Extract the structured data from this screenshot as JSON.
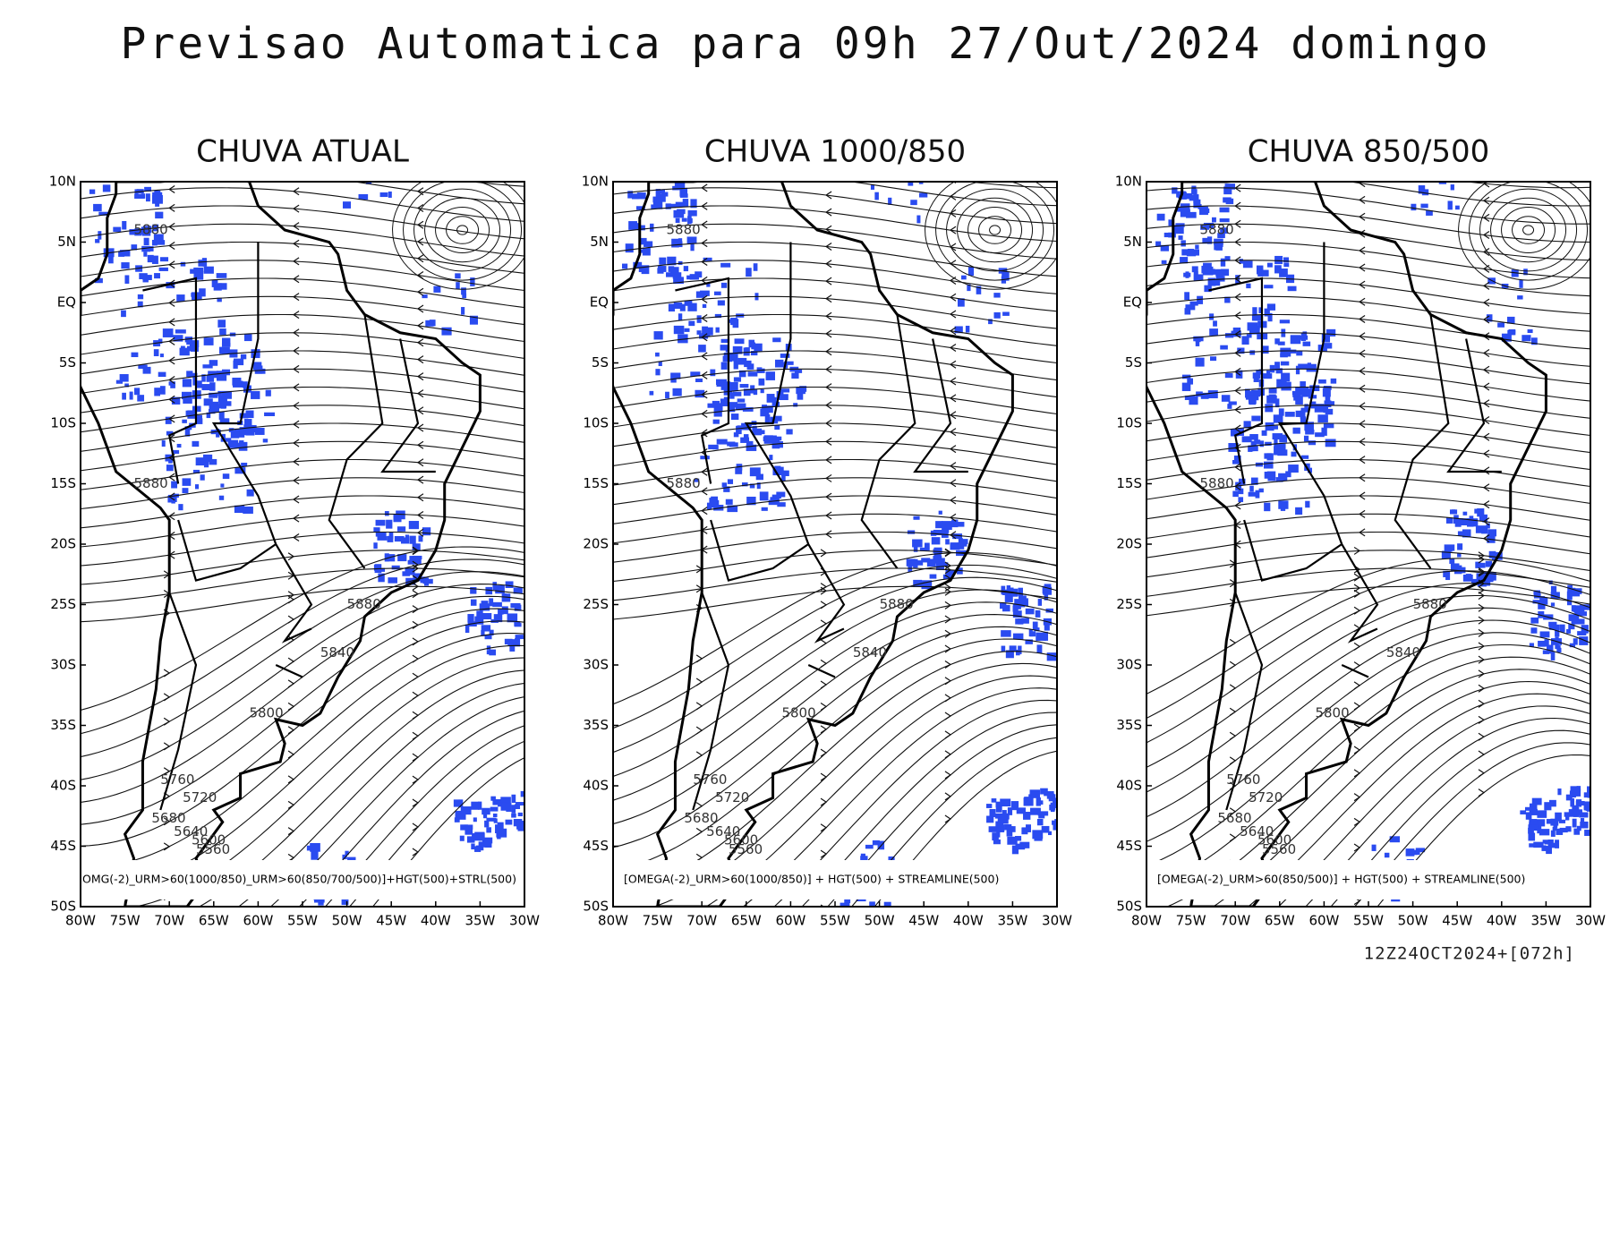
{
  "header": {
    "title": "Previsao Automatica para 09h 27/Out/2024 domingo"
  },
  "lat_labels": [
    "10N",
    "5N",
    "EQ",
    "5S",
    "10S",
    "15S",
    "20S",
    "25S",
    "30S",
    "35S",
    "40S",
    "45S",
    "50S"
  ],
  "lon_labels": [
    "80W",
    "75W",
    "70W",
    "65W",
    "60W",
    "55W",
    "50W",
    "45W",
    "40W",
    "35W",
    "30W"
  ],
  "panels": [
    {
      "title": "CHUVA ATUAL",
      "caption": "OMG(-2)_URM>60(1000/850)_URM>60(850/700/500)]+HGT(500)+STRL(500)",
      "contour_labels": [
        "5880",
        "5880",
        "5880",
        "5840",
        "5800",
        "5760",
        "5720",
        "5680",
        "5640",
        "5600",
        "5560"
      ]
    },
    {
      "title": "CHUVA 1000/850",
      "caption": "[OMEGA(-2)_URM>60(1000/850)] + HGT(500) + STREAMLINE(500)",
      "contour_labels": [
        "5880",
        "5880",
        "5880",
        "5840",
        "5800",
        "5760",
        "5720",
        "5680",
        "5640",
        "5600",
        "5560"
      ]
    },
    {
      "title": "CHUVA 850/500",
      "caption": "[OMEGA(-2)_URM>60(850/500)] + HGT(500) + STREAMLINE(500)",
      "contour_labels": [
        "5880",
        "5880",
        "5880",
        "5840",
        "5800",
        "5760",
        "5720",
        "5680",
        "5640",
        "5600",
        "5560"
      ]
    }
  ],
  "footer": {
    "run": "12Z24OCT2024+[072h]"
  }
}
